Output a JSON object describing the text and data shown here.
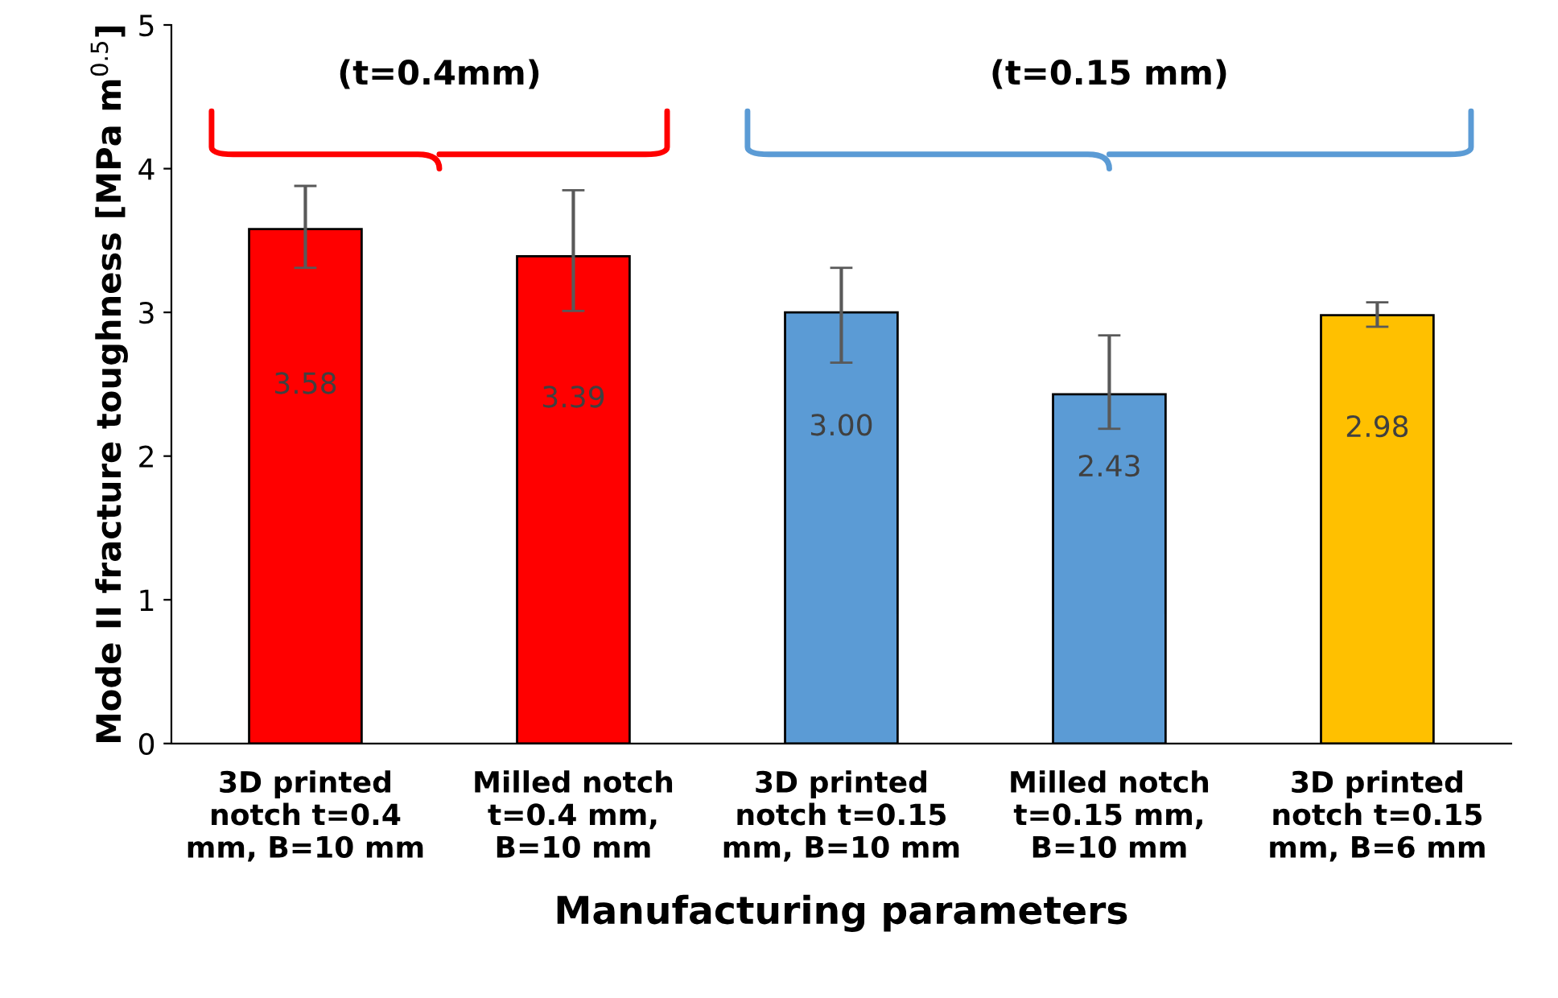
{
  "chart_data": {
    "type": "bar",
    "xlabel": "Manufacturing parameters",
    "ylabel": "Mode II fracture toughness [MPa m$^{0.5}$]",
    "categories": [
      "3D printed\nnotch t=0.4\nmm, B=10 mm",
      "Milled notch\nt=0.4 mm,\nB=10 mm",
      "3D printed\nnotch t=0.15\nmm, B=10 mm",
      "Milled notch\nt=0.15 mm,\nB=10 mm",
      "3D printed\nnotch t=0.15\nmm, B=6 mm"
    ],
    "values": [
      3.58,
      3.39,
      3.0,
      2.43,
      2.98
    ],
    "colors": [
      "#ff0000",
      "#ff0000",
      "#5b9bd5",
      "#5b9bd5",
      "#ffc000"
    ],
    "errors": [
      [
        3.31,
        3.88
      ],
      [
        3.01,
        3.85
      ],
      [
        2.65,
        3.31
      ],
      [
        2.19,
        2.84
      ],
      [
        2.9,
        3.07
      ]
    ],
    "value_labels": [
      "3.58",
      "3.39",
      "3.00",
      "2.43",
      "2.98"
    ],
    "annotations": [
      "(t=0.4mm)",
      "(t=0.15 mm)"
    ],
    "ylim": [
      0,
      5
    ],
    "yticks": [
      0,
      1,
      2,
      3,
      4,
      5
    ],
    "grid": false
  }
}
